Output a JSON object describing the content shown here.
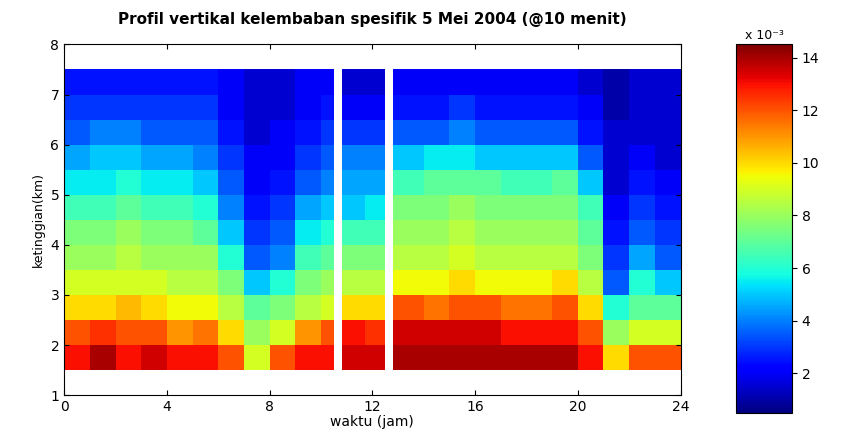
{
  "chart_data": {
    "type": "heatmap",
    "title": "Profil vertikal kelembaban spesifik 5 Mei 2004 (@10 menit)",
    "x_label": "waktu (jam)",
    "y_label": "ketinggian(km)",
    "xlim": [
      0,
      24
    ],
    "xticks": [
      0,
      4,
      8,
      12,
      16,
      20,
      24
    ],
    "ylim": [
      1,
      8
    ],
    "yticks": [
      1,
      2,
      3,
      4,
      5,
      6,
      7,
      8
    ],
    "color": "jet",
    "x_edges": [
      0,
      1,
      2,
      3,
      4,
      5,
      6,
      7,
      8,
      9,
      10,
      10.5,
      10.8,
      11.7,
      12.5,
      12.8,
      14,
      15,
      16,
      17,
      18,
      19,
      20,
      21,
      22,
      23,
      24
    ],
    "y_edges": [
      1.5,
      2.0,
      2.5,
      3.0,
      3.5,
      4.0,
      4.5,
      5.0,
      5.5,
      6.0,
      6.5,
      7.0,
      7.5
    ],
    "cells": [
      [
        13,
        12,
        10,
        9,
        8,
        7.5,
        6.5,
        5.5,
        4.5,
        3.5,
        3,
        2.5
      ],
      [
        14,
        12.5,
        10,
        9,
        8,
        7.5,
        6.5,
        5.5,
        5,
        4,
        3,
        2.5
      ],
      [
        13,
        12,
        10.5,
        9,
        8.5,
        8,
        7,
        6,
        5,
        4,
        3,
        2.5
      ],
      [
        13.5,
        12,
        10,
        9,
        8,
        7.5,
        6.5,
        5.5,
        4.5,
        3.5,
        3,
        2.5
      ],
      [
        13,
        11,
        9.5,
        8.5,
        8,
        7.5,
        6.5,
        5.5,
        4.5,
        3.5,
        3,
        2.5
      ],
      [
        13,
        11.5,
        9.5,
        8.5,
        8,
        7,
        6,
        5,
        4,
        3.5,
        3,
        2.5
      ],
      [
        12,
        10,
        8.5,
        7.5,
        6,
        5,
        4,
        3.5,
        3,
        2.5,
        2,
        2
      ],
      [
        9,
        8,
        7,
        5,
        3.5,
        3,
        2.5,
        2,
        2,
        1.5,
        1.5,
        1.5
      ],
      [
        12,
        9,
        7.5,
        6,
        4,
        3.5,
        3,
        2.5,
        2,
        2,
        1.5,
        1.5
      ],
      [
        13,
        11,
        8.5,
        7.5,
        6.5,
        5.5,
        4.5,
        3.5,
        3,
        2.5,
        2,
        2
      ],
      [
        13,
        12,
        9,
        8,
        7,
        6,
        5,
        4,
        3.5,
        3,
        2.5,
        2
      ],
      [
        null,
        null,
        null,
        null,
        null,
        null,
        null,
        null,
        null,
        null,
        null,
        null
      ],
      [
        13.5,
        13,
        10,
        8.5,
        7.5,
        6.5,
        5,
        4.5,
        4,
        3,
        2,
        1.5
      ],
      [
        13.5,
        12.5,
        10,
        8.5,
        7.5,
        6.5,
        5.5,
        4.5,
        4,
        3,
        2,
        1.5
      ],
      [
        null,
        null,
        null,
        null,
        null,
        null,
        null,
        null,
        null,
        null,
        null,
        null
      ],
      [
        14,
        13.5,
        12,
        9.5,
        8.5,
        8,
        7.5,
        6.5,
        5,
        3.5,
        2.5,
        2
      ],
      [
        14,
        13.5,
        11.5,
        9.5,
        8.5,
        8,
        7.5,
        7,
        5.5,
        3.5,
        2.5,
        2
      ],
      [
        14,
        13.5,
        12,
        10,
        9,
        8.5,
        8,
        7,
        5.5,
        4,
        3,
        2
      ],
      [
        14,
        13.5,
        12,
        9.5,
        8.5,
        8,
        7.5,
        7,
        5,
        3.5,
        2.5,
        2
      ],
      [
        14,
        13,
        11.5,
        9.5,
        8.5,
        8,
        7.5,
        6.5,
        5,
        3.5,
        2.5,
        2
      ],
      [
        14,
        13,
        11.5,
        9.5,
        8.5,
        8,
        7.5,
        6.5,
        5,
        3.5,
        2.5,
        2
      ],
      [
        14,
        13,
        12,
        10,
        8.5,
        8,
        7.5,
        7,
        5,
        3.5,
        2.5,
        2
      ],
      [
        13,
        12,
        10,
        8.5,
        7.5,
        7,
        6.5,
        5,
        3.5,
        2.5,
        2,
        1.5
      ],
      [
        10,
        8,
        6,
        3.5,
        3,
        2.5,
        2,
        1.5,
        1.5,
        1.5,
        1,
        1
      ],
      [
        12,
        9,
        7,
        6,
        4.5,
        3.5,
        3,
        2.5,
        2,
        1.5,
        1.5,
        1.5
      ],
      [
        12,
        9,
        7,
        5,
        3.5,
        3,
        2.5,
        2,
        1.5,
        1.5,
        1.5,
        1.5
      ]
    ],
    "colorbar_lim": [
      0.5,
      14.5
    ],
    "colorbar_ticks": [
      2,
      4,
      6,
      8,
      10,
      12,
      14
    ],
    "colorbar_title": "x 10⁻³"
  }
}
